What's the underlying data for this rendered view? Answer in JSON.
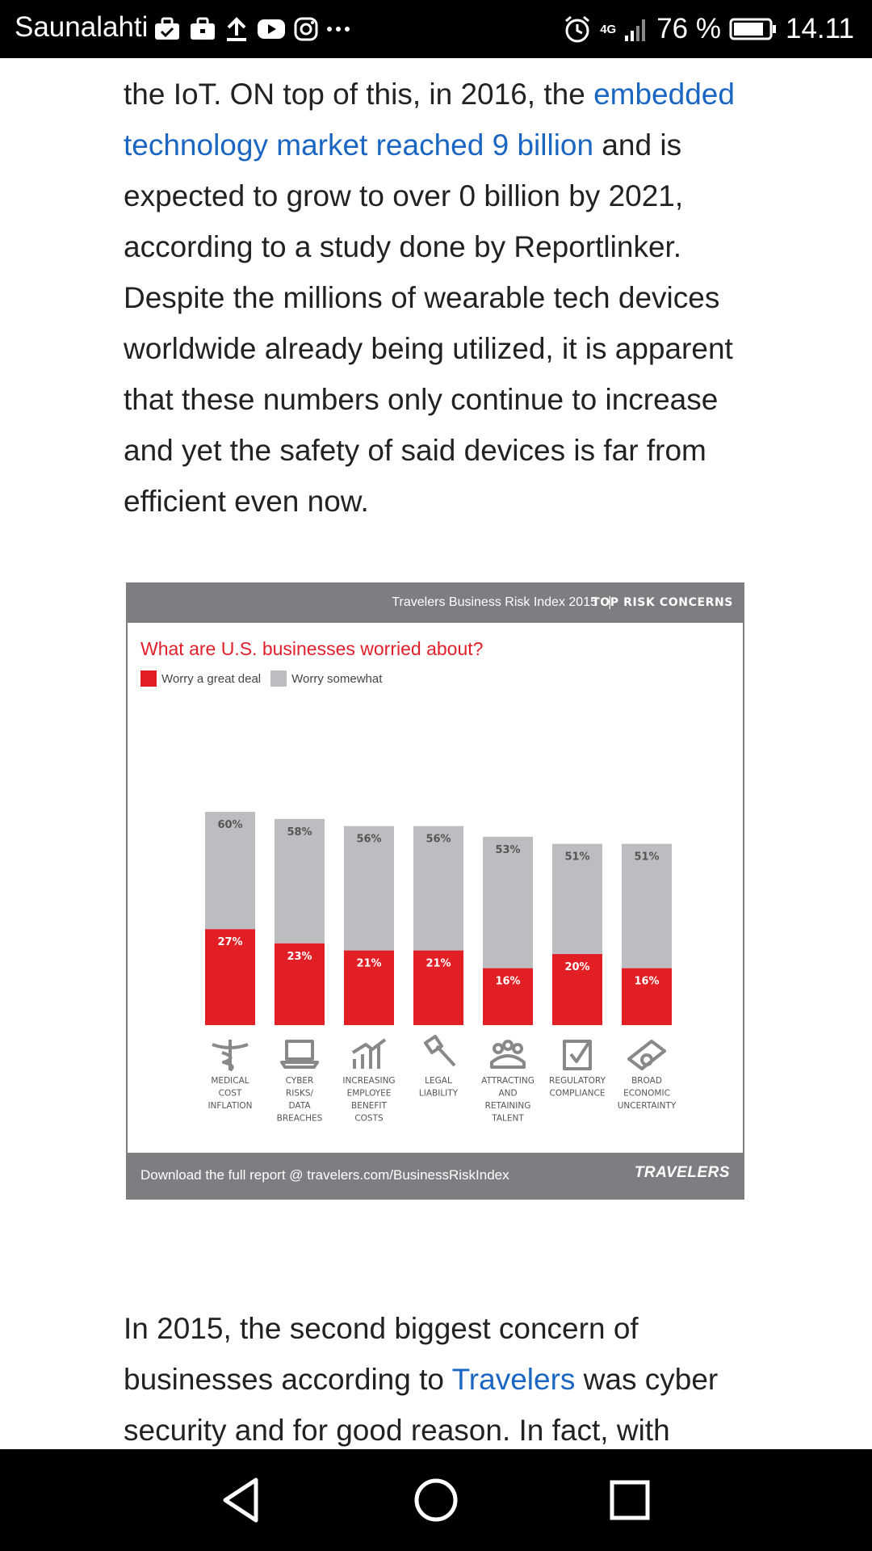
{
  "status_bar": {
    "carrier": "Saunalahti",
    "network": "4G",
    "battery": "76 %",
    "time": "14.11",
    "icons": [
      "briefcase-check-icon",
      "briefcase-icon",
      "upload-icon",
      "youtube-icon",
      "instagram-icon",
      "more-icon",
      "alarm-icon",
      "signal-icon",
      "battery-icon"
    ]
  },
  "article": {
    "p1": {
      "before": "the IoT. ON top of this, in 2016, the ",
      "link": "embedded technology market reached 9 billion",
      "after": " and is expected to grow to over 0 billion by 2021, according to a study done by Reportlinker. Despite the millions of wearable tech devices worldwide already being utilized, it is apparent that these numbers only continue to increase and yet the safety of said devices is far from efficient even now."
    },
    "p2": {
      "before": "In 2015, the second biggest concern of businesses according to ",
      "link": "Travelers",
      "after": " was cyber security and for good reason. In fact, with"
    }
  },
  "infographic": {
    "source": "Travelers Business Risk Index 2015",
    "separator": "|",
    "tag": "TOP RISK CONCERNS",
    "question": "What are U.S. businesses worried about?",
    "legend": [
      "Worry a great deal",
      "Worry somewhat"
    ],
    "footer_text": "Download the full report @ travelers.com/BusinessRiskIndex",
    "brand": "TRAVELERS",
    "colors": {
      "great_deal": "#e31f26",
      "somewhat": "#bcbdc0",
      "header": "#7d7e82"
    }
  },
  "chart_data": {
    "type": "bar",
    "stacked": true,
    "title": "What are U.S. businesses worried about?",
    "ylim": [
      0,
      60
    ],
    "categories": [
      [
        "MEDICAL",
        "COST",
        "INFLATION"
      ],
      [
        "CYBER",
        "RISKS/",
        "DATA",
        "BREACHES"
      ],
      [
        "INCREASING",
        "EMPLOYEE",
        "BENEFIT",
        "COSTS"
      ],
      [
        "LEGAL",
        "LIABILITY"
      ],
      [
        "ATTRACTING",
        "AND",
        "RETAINING",
        "TALENT"
      ],
      [
        "REGULATORY",
        "COMPLIANCE"
      ],
      [
        "BROAD",
        "ECONOMIC",
        "UNCERTAINTY"
      ]
    ],
    "icons": [
      "caduceus-icon",
      "laptop-icon",
      "rising-chart-icon",
      "gavel-icon",
      "people-icon",
      "checkbox-icon",
      "money-icon"
    ],
    "series": [
      {
        "name": "Worry a great deal",
        "values": [
          27,
          23,
          21,
          21,
          16,
          20,
          16
        ],
        "labels": [
          "27%",
          "23%",
          "21%",
          "21%",
          "16%",
          "20%",
          "16%"
        ]
      },
      {
        "name": "Worry somewhat",
        "totals": [
          60,
          58,
          56,
          56,
          53,
          51,
          51
        ],
        "labels": [
          "60%",
          "58%",
          "56%",
          "56%",
          "53%",
          "51%",
          "51%"
        ]
      }
    ]
  }
}
